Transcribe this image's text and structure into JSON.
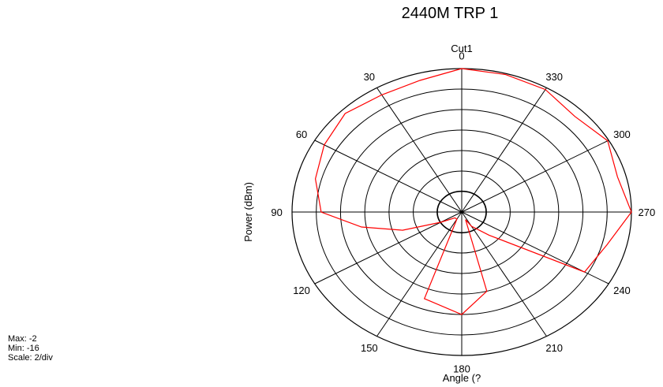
{
  "header": {
    "title": "2440M TRP 1"
  },
  "stats": {
    "max": "Max: -2",
    "min": "Min: -16",
    "scale": "Scale: 2/div"
  },
  "chart_data": {
    "type": "polar-line",
    "title": "Cut1",
    "xlabel": "Angle (?",
    "ylabel": "Power (dBm)",
    "radial_range": [
      -16,
      -2
    ],
    "radial_step": 2,
    "angle_direction": "counterclockwise",
    "zero_angle_position": "top",
    "angle_ticks": [
      0,
      30,
      60,
      90,
      120,
      150,
      180,
      210,
      240,
      270,
      300,
      330
    ],
    "angle_tick_labels": [
      "0",
      "30",
      "60",
      "90",
      "120",
      "150",
      "180",
      "210",
      "240",
      "270",
      "300",
      "330"
    ],
    "grid": true,
    "series": [
      {
        "color": "#ff0000",
        "points": [
          {
            "angle": 0,
            "value": -2.0
          },
          {
            "angle": 15,
            "value": -2.7
          },
          {
            "angle": 30,
            "value": -2.8
          },
          {
            "angle": 45,
            "value": -2.4
          },
          {
            "angle": 60,
            "value": -2.9
          },
          {
            "angle": 75,
            "value": -3.5
          },
          {
            "angle": 90,
            "value": -4.4
          },
          {
            "angle": 100,
            "value": -7.6
          },
          {
            "angle": 110,
            "value": -10.8
          },
          {
            "angle": 120,
            "value": -14.0
          },
          {
            "angle": 135,
            "value": -15.2
          },
          {
            "angle": 150,
            "value": -15.2
          },
          {
            "angle": 160,
            "value": -7.0
          },
          {
            "angle": 180,
            "value": -6.0
          },
          {
            "angle": 195,
            "value": -8.0
          },
          {
            "angle": 203,
            "value": -15.2
          },
          {
            "angle": 210,
            "value": -14.4
          },
          {
            "angle": 225,
            "value": -12.8
          },
          {
            "angle": 240,
            "value": -4.3
          },
          {
            "angle": 255,
            "value": -3.6
          },
          {
            "angle": 270,
            "value": -2.0
          },
          {
            "angle": 285,
            "value": -2.7
          },
          {
            "angle": 300,
            "value": -2.1
          },
          {
            "angle": 315,
            "value": -2.8
          },
          {
            "angle": 330,
            "value": -2.2
          },
          {
            "angle": 345,
            "value": -2.1
          },
          {
            "angle": 360,
            "value": -2.0
          }
        ]
      }
    ]
  }
}
